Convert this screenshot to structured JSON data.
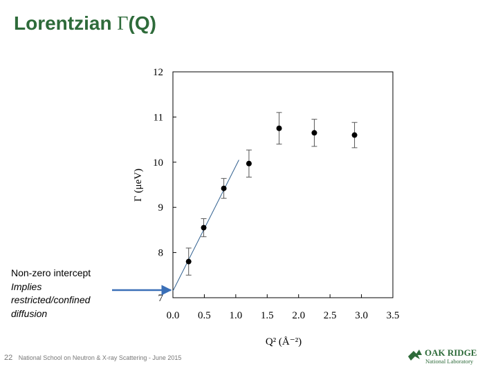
{
  "title": {
    "prefix": "Lorentzian ",
    "symbol": "Γ",
    "suffix": "(Q)"
  },
  "annotation": {
    "line1": "Non-zero intercept",
    "line2": "Implies",
    "line3": "restricted/confined",
    "line4": "diffusion",
    "arrow_color": "#3a6fb7"
  },
  "footer": {
    "page_number": "22",
    "text": "National School on Neutron & X-ray Scattering -  June 2015"
  },
  "logo": {
    "line1": "OAK RIDGE",
    "line2": "National Laboratory",
    "color": "#2e6b3a"
  },
  "chart_data": {
    "type": "scatter",
    "xlabel": "Q² (Å⁻²)",
    "ylabel": "Γ (μeV)",
    "xlim": [
      0.0,
      3.5
    ],
    "ylim": [
      7,
      12
    ],
    "xticks": [
      "0.0",
      "0.5",
      "1.0",
      "1.5",
      "2.0",
      "2.5",
      "3.0",
      "3.5"
    ],
    "yticks": [
      "7",
      "8",
      "9",
      "10",
      "11",
      "12"
    ],
    "grid": false,
    "points": [
      {
        "x": 0.25,
        "y": 7.8,
        "err": 0.3
      },
      {
        "x": 0.49,
        "y": 8.55,
        "err": 0.2
      },
      {
        "x": 0.81,
        "y": 9.42,
        "err": 0.22
      },
      {
        "x": 1.21,
        "y": 9.97,
        "err": 0.3
      },
      {
        "x": 1.69,
        "y": 10.75,
        "err": 0.35
      },
      {
        "x": 2.25,
        "y": 10.65,
        "err": 0.3
      },
      {
        "x": 2.89,
        "y": 10.6,
        "err": 0.28
      }
    ],
    "fit_line": {
      "x": [
        0.0,
        1.05
      ],
      "y": [
        7.15,
        10.05
      ],
      "color": "#2f5f8f"
    }
  }
}
